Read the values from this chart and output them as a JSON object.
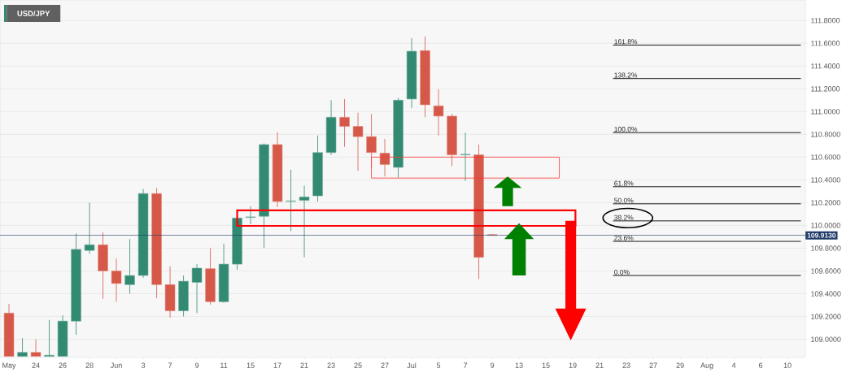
{
  "chart_data": {
    "type": "candlestick",
    "title": "USD/JPY",
    "categories": [
      "May",
      null,
      "24",
      null,
      "26",
      null,
      "28",
      null,
      "Jun",
      null,
      "3",
      null,
      "7",
      null,
      "9",
      null,
      "11",
      null,
      "15",
      null,
      "17",
      null,
      "21",
      null,
      "23",
      null,
      "25",
      null,
      "27",
      null,
      "Jul",
      null,
      "5",
      null,
      "7",
      null,
      "9",
      null,
      "13",
      null,
      "15",
      null,
      "19",
      null,
      "21",
      null,
      "23",
      null,
      "27",
      null,
      "29",
      null,
      "Aug",
      null,
      "4",
      null,
      "6",
      null,
      "10",
      null
    ],
    "ylim": [
      108.84,
      111.98
    ],
    "yticks": [
      {
        "value": 109.0,
        "label": "109.0000"
      },
      {
        "value": 109.2,
        "label": "109.2000"
      },
      {
        "value": 109.4,
        "label": "109.4000"
      },
      {
        "value": 109.6,
        "label": "109.6000"
      },
      {
        "value": 109.8,
        "label": "109.8000"
      },
      {
        "value": 110.0,
        "label": "110.0000"
      },
      {
        "value": 110.2,
        "label": "110.2000"
      },
      {
        "value": 110.4,
        "label": "110.4000"
      },
      {
        "value": 110.6,
        "label": "110.6000"
      },
      {
        "value": 110.8,
        "label": "110.8000"
      },
      {
        "value": 111.0,
        "label": "111.0000"
      },
      {
        "value": 111.2,
        "label": "111.2000"
      },
      {
        "value": 111.4,
        "label": "111.4000"
      },
      {
        "value": 111.6,
        "label": "111.6000"
      },
      {
        "value": 111.8,
        "label": "111.8000"
      }
    ],
    "grid": "y",
    "series": [
      {
        "ohlc": [
          [
            109.23,
            109.31,
            108.85,
            108.85
          ],
          [
            108.85,
            109.01,
            108.85,
            108.885
          ],
          [
            108.885,
            109.0,
            108.85,
            108.85
          ],
          [
            108.85,
            109.17,
            108.85,
            108.86
          ],
          [
            108.85,
            109.21,
            108.85,
            109.16
          ],
          [
            109.16,
            109.93,
            109.04,
            109.79
          ],
          [
            109.78,
            110.2,
            109.75,
            109.83
          ],
          [
            109.83,
            109.94,
            109.355,
            109.6
          ],
          [
            109.6,
            109.71,
            109.33,
            109.49
          ],
          [
            109.48,
            109.88,
            109.4,
            109.56
          ],
          [
            109.56,
            110.32,
            109.54,
            110.28
          ],
          [
            110.28,
            110.33,
            109.36,
            109.48
          ],
          [
            109.48,
            109.64,
            109.19,
            109.25
          ],
          [
            109.25,
            109.56,
            109.2,
            109.51
          ],
          [
            109.5,
            109.66,
            109.23,
            109.625
          ],
          [
            109.62,
            109.8,
            109.305,
            109.33
          ],
          [
            109.33,
            109.84,
            109.32,
            109.66
          ],
          [
            109.66,
            110.07,
            109.61,
            110.065
          ],
          [
            110.07,
            110.17,
            110.01,
            110.075
          ],
          [
            110.08,
            110.72,
            109.8,
            110.71
          ],
          [
            110.71,
            110.82,
            110.16,
            110.21
          ],
          [
            110.21,
            110.49,
            109.95,
            110.215
          ],
          [
            110.22,
            110.35,
            109.72,
            110.25
          ],
          [
            110.26,
            110.79,
            110.21,
            110.64
          ],
          [
            110.64,
            111.1,
            110.62,
            110.95
          ],
          [
            110.95,
            111.11,
            110.69,
            110.87
          ],
          [
            110.87,
            110.99,
            110.48,
            110.78
          ],
          [
            110.78,
            110.98,
            110.51,
            110.64
          ],
          [
            110.635,
            110.76,
            110.43,
            110.535
          ],
          [
            110.51,
            111.12,
            110.42,
            111.1
          ],
          [
            111.11,
            111.645,
            111.03,
            111.53
          ],
          [
            111.535,
            111.66,
            110.95,
            111.06
          ],
          [
            111.05,
            111.195,
            110.79,
            110.96
          ],
          [
            110.96,
            110.98,
            110.52,
            110.62
          ],
          [
            110.62,
            110.815,
            110.39,
            110.625
          ],
          [
            110.62,
            110.71,
            109.53,
            109.72
          ],
          [
            109.92,
            109.925,
            109.91,
            109.913
          ],
          null,
          null,
          null,
          null,
          null,
          null,
          null,
          null,
          null,
          null,
          null,
          null,
          null,
          null,
          null,
          null,
          null,
          null,
          null,
          null,
          null,
          null,
          null
        ],
        "colors": [
          "#d55848",
          "#338a72",
          "#d55848",
          "#338a72",
          "#338a72",
          "#338a72",
          "#338a72",
          "#d55848",
          "#d55848",
          "#338a72",
          "#338a72",
          "#d55848",
          "#d55848",
          "#338a72",
          "#338a72",
          "#d55848",
          "#338a72",
          "#338a72",
          "#338a72",
          "#338a72",
          "#d55848",
          "#338a72",
          "#338a72",
          "#338a72",
          "#338a72",
          "#d55848",
          "#d55848",
          "#d55848",
          "#d55848",
          "#338a72",
          "#338a72",
          "#d55848",
          "#d55848",
          "#d55848",
          "#338a72",
          "#d55848",
          "#d55848",
          null,
          null,
          null,
          null,
          null,
          null,
          null,
          null,
          null,
          null,
          null,
          null,
          null,
          null,
          null,
          null,
          null,
          null,
          null,
          null,
          null,
          null,
          null
        ]
      },
      {
        "type": "line",
        "name": "161.8%",
        "color": "#000000",
        "values": [
          null,
          null,
          null,
          null,
          null,
          null,
          null,
          null,
          null,
          null,
          null,
          null,
          null,
          null,
          null,
          null,
          null,
          null,
          null,
          null,
          null,
          null,
          null,
          null,
          null,
          null,
          null,
          null,
          null,
          null,
          null,
          null,
          null,
          null,
          null,
          null,
          null,
          null,
          null,
          null,
          null,
          null,
          null,
          null,
          null,
          111.584,
          111.584,
          111.584,
          111.584,
          111.584,
          111.584,
          111.584,
          111.584,
          111.584,
          111.584,
          111.584,
          111.584,
          111.584,
          111.584,
          111.584
        ]
      },
      {
        "type": "line",
        "name": "138.2%",
        "color": "#000000",
        "values": [
          null,
          null,
          null,
          null,
          null,
          null,
          null,
          null,
          null,
          null,
          null,
          null,
          null,
          null,
          null,
          null,
          null,
          null,
          null,
          null,
          null,
          null,
          null,
          null,
          null,
          null,
          null,
          null,
          null,
          null,
          null,
          null,
          null,
          null,
          null,
          null,
          null,
          null,
          null,
          null,
          null,
          null,
          null,
          null,
          null,
          111.29,
          111.29,
          111.29,
          111.29,
          111.29,
          111.29,
          111.29,
          111.29,
          111.29,
          111.29,
          111.29,
          111.29,
          111.29,
          111.29,
          111.29
        ]
      },
      {
        "type": "line",
        "name": "100.0%",
        "color": "#000000",
        "values": [
          null,
          null,
          null,
          null,
          null,
          null,
          null,
          null,
          null,
          null,
          null,
          null,
          null,
          null,
          null,
          null,
          null,
          null,
          null,
          null,
          null,
          null,
          null,
          null,
          null,
          null,
          null,
          null,
          null,
          null,
          null,
          null,
          null,
          null,
          null,
          null,
          null,
          null,
          null,
          null,
          null,
          null,
          null,
          null,
          null,
          110.815,
          110.815,
          110.815,
          110.815,
          110.815,
          110.815,
          110.815,
          110.815,
          110.815,
          110.815,
          110.815,
          110.815,
          110.815,
          110.815,
          110.815
        ]
      },
      {
        "type": "line",
        "name": "61.8%",
        "color": "#000000",
        "values": [
          null,
          null,
          null,
          null,
          null,
          null,
          null,
          null,
          null,
          null,
          null,
          null,
          null,
          null,
          null,
          null,
          null,
          null,
          null,
          null,
          null,
          null,
          null,
          null,
          null,
          null,
          null,
          null,
          null,
          null,
          null,
          null,
          null,
          null,
          null,
          null,
          null,
          null,
          null,
          null,
          null,
          null,
          null,
          null,
          null,
          110.34,
          110.34,
          110.34,
          110.34,
          110.34,
          110.34,
          110.34,
          110.34,
          110.34,
          110.34,
          110.34,
          110.34,
          110.34,
          110.34,
          110.34
        ]
      },
      {
        "type": "line",
        "name": "50.0%",
        "color": "#000000",
        "values": [
          null,
          null,
          null,
          null,
          null,
          null,
          null,
          null,
          null,
          null,
          null,
          null,
          null,
          null,
          null,
          null,
          null,
          null,
          null,
          null,
          null,
          null,
          null,
          null,
          null,
          null,
          null,
          null,
          null,
          null,
          null,
          null,
          null,
          null,
          null,
          null,
          null,
          null,
          null,
          null,
          null,
          null,
          null,
          null,
          null,
          110.19,
          110.19,
          110.19,
          110.19,
          110.19,
          110.19,
          110.19,
          110.19,
          110.19,
          110.19,
          110.19,
          110.19,
          110.19,
          110.19,
          110.19
        ]
      },
      {
        "type": "line",
        "name": "38.2%",
        "color": "#000000",
        "values": [
          null,
          null,
          null,
          null,
          null,
          null,
          null,
          null,
          null,
          null,
          null,
          null,
          null,
          null,
          null,
          null,
          null,
          null,
          null,
          null,
          null,
          null,
          null,
          null,
          null,
          null,
          null,
          null,
          null,
          null,
          null,
          null,
          null,
          null,
          null,
          null,
          null,
          null,
          null,
          null,
          null,
          null,
          null,
          null,
          null,
          110.04,
          110.04,
          110.04,
          110.04,
          110.04,
          110.04,
          110.04,
          110.04,
          110.04,
          110.04,
          110.04,
          110.04,
          110.04,
          110.04,
          110.04
        ]
      },
      {
        "type": "line",
        "name": "23.6%",
        "color": "#000000",
        "values": [
          null,
          null,
          null,
          null,
          null,
          null,
          null,
          null,
          null,
          null,
          null,
          null,
          null,
          null,
          null,
          null,
          null,
          null,
          null,
          null,
          null,
          null,
          null,
          null,
          null,
          null,
          null,
          null,
          null,
          null,
          null,
          null,
          null,
          null,
          null,
          null,
          null,
          null,
          null,
          null,
          null,
          null,
          null,
          null,
          null,
          109.86,
          109.86,
          109.86,
          109.86,
          109.86,
          109.86,
          109.86,
          109.86,
          109.86,
          109.86,
          109.86,
          109.86,
          109.86,
          109.86,
          109.86
        ]
      },
      {
        "type": "line",
        "name": "0.0%",
        "color": "#000000",
        "values": [
          null,
          null,
          null,
          null,
          null,
          null,
          null,
          null,
          null,
          null,
          null,
          null,
          null,
          null,
          null,
          null,
          null,
          null,
          null,
          null,
          null,
          null,
          null,
          null,
          null,
          null,
          null,
          null,
          null,
          null,
          null,
          null,
          null,
          null,
          null,
          null,
          null,
          null,
          null,
          null,
          null,
          null,
          null,
          null,
          null,
          109.56,
          109.56,
          109.56,
          109.56,
          109.56,
          109.56,
          109.56,
          109.56,
          109.56,
          109.56,
          109.56,
          109.56,
          109.56,
          109.56,
          109.56
        ]
      }
    ],
    "ref_lines": [
      {
        "axis": "y",
        "value": 109.913,
        "label": "109.9130",
        "color": "#1f3a68"
      }
    ]
  }
}
